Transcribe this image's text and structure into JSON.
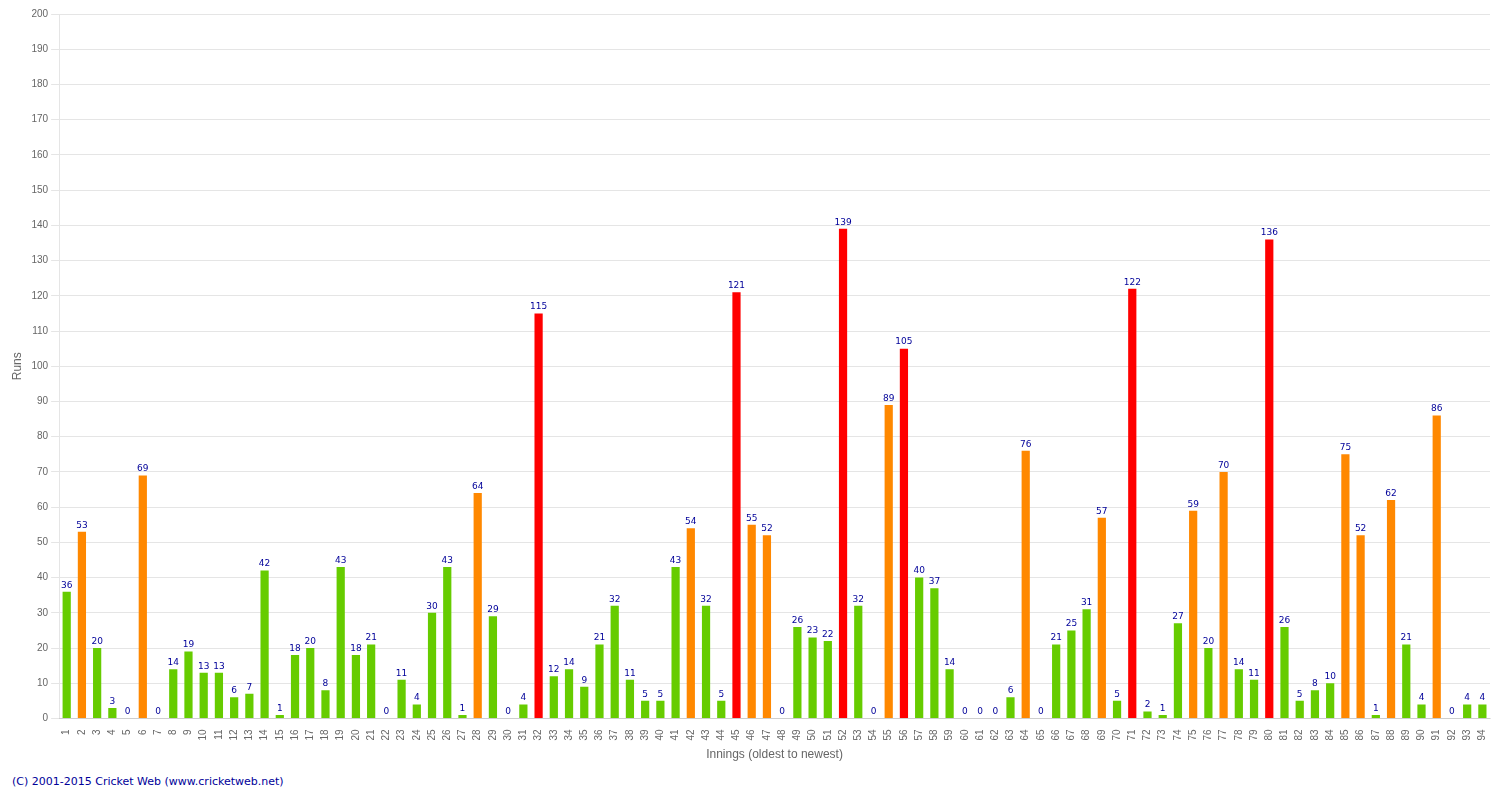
{
  "chart_data": {
    "type": "bar",
    "xlabel": "Innings (oldest to newest)",
    "ylabel": "Runs",
    "annotations": [
      "(C) 2001-2015 Cricket Web (www.cricketweb.net)"
    ],
    "categories": [
      "1",
      "2",
      "3",
      "4",
      "5",
      "6",
      "7",
      "8",
      "9",
      "10",
      "11",
      "12",
      "13",
      "14",
      "15",
      "16",
      "17",
      "18",
      "19",
      "20",
      "21",
      "22",
      "23",
      "24",
      "25",
      "26",
      "27",
      "28",
      "29",
      "30",
      "31",
      "32",
      "33",
      "34",
      "35",
      "36",
      "37",
      "38",
      "39",
      "40",
      "41",
      "42",
      "43",
      "44",
      "45",
      "46",
      "47",
      "48",
      "49",
      "50",
      "51",
      "52",
      "53",
      "54",
      "55",
      "56",
      "57",
      "58",
      "59",
      "60",
      "61",
      "62",
      "63",
      "64",
      "65",
      "66",
      "67",
      "68",
      "69",
      "70",
      "71",
      "72",
      "73",
      "74",
      "75",
      "76",
      "77",
      "78",
      "79",
      "80",
      "81",
      "82",
      "83",
      "84",
      "85",
      "86",
      "87",
      "88",
      "89",
      "90",
      "91",
      "92",
      "93",
      "94"
    ],
    "values": [
      36,
      53,
      20,
      3,
      0,
      69,
      0,
      14,
      19,
      13,
      13,
      6,
      7,
      42,
      1,
      18,
      20,
      8,
      43,
      18,
      21,
      0,
      11,
      4,
      30,
      43,
      1,
      64,
      29,
      0,
      4,
      115,
      12,
      14,
      9,
      21,
      32,
      11,
      5,
      5,
      43,
      54,
      32,
      5,
      121,
      55,
      52,
      0,
      26,
      23,
      22,
      139,
      32,
      0,
      89,
      105,
      40,
      37,
      14,
      0,
      0,
      0,
      6,
      76,
      0,
      21,
      25,
      31,
      57,
      5,
      122,
      2,
      1,
      27,
      59,
      20,
      70,
      14,
      11,
      136,
      26,
      5,
      8,
      10,
      75,
      52,
      1,
      62,
      21,
      4,
      86,
      0,
      4,
      4
    ],
    "colors": [
      "#66cc00",
      "#ff8800",
      "#66cc00",
      "#66cc00",
      "#66cc00",
      "#ff8800",
      "#66cc00",
      "#66cc00",
      "#66cc00",
      "#66cc00",
      "#66cc00",
      "#66cc00",
      "#66cc00",
      "#66cc00",
      "#66cc00",
      "#66cc00",
      "#66cc00",
      "#66cc00",
      "#66cc00",
      "#66cc00",
      "#66cc00",
      "#66cc00",
      "#66cc00",
      "#66cc00",
      "#66cc00",
      "#66cc00",
      "#66cc00",
      "#ff8800",
      "#66cc00",
      "#66cc00",
      "#66cc00",
      "#ff0000",
      "#66cc00",
      "#66cc00",
      "#66cc00",
      "#66cc00",
      "#66cc00",
      "#66cc00",
      "#66cc00",
      "#66cc00",
      "#66cc00",
      "#ff8800",
      "#66cc00",
      "#66cc00",
      "#ff0000",
      "#ff8800",
      "#ff8800",
      "#66cc00",
      "#66cc00",
      "#66cc00",
      "#66cc00",
      "#ff0000",
      "#66cc00",
      "#66cc00",
      "#ff8800",
      "#ff0000",
      "#66cc00",
      "#66cc00",
      "#66cc00",
      "#66cc00",
      "#66cc00",
      "#66cc00",
      "#66cc00",
      "#ff8800",
      "#66cc00",
      "#66cc00",
      "#66cc00",
      "#66cc00",
      "#ff8800",
      "#66cc00",
      "#ff0000",
      "#66cc00",
      "#66cc00",
      "#66cc00",
      "#ff8800",
      "#66cc00",
      "#ff8800",
      "#66cc00",
      "#66cc00",
      "#ff0000",
      "#66cc00",
      "#66cc00",
      "#66cc00",
      "#66cc00",
      "#ff8800",
      "#ff8800",
      "#66cc00",
      "#ff8800",
      "#66cc00",
      "#66cc00",
      "#ff8800",
      "#66cc00",
      "#66cc00",
      "#66cc00"
    ],
    "ylim": [
      0,
      200
    ],
    "yticks": [
      0,
      10,
      20,
      30,
      40,
      50,
      60,
      70,
      80,
      90,
      100,
      110,
      120,
      130,
      140,
      150,
      160,
      170,
      180,
      190,
      200
    ],
    "grid": true,
    "data_labels": true
  }
}
